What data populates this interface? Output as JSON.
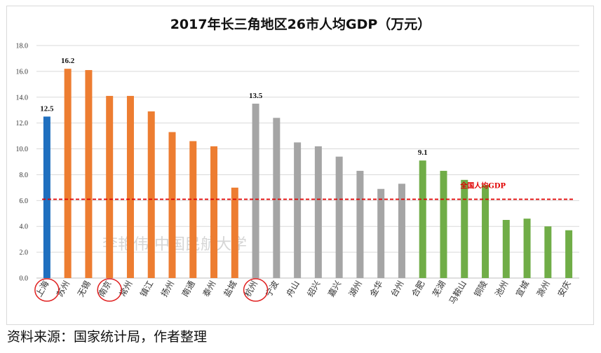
{
  "chart_data": {
    "type": "bar",
    "title": "2017年长三角地区26市人均GDP（万元）",
    "ylim": [
      0,
      18
    ],
    "yticks": [
      "0.0",
      "2.0",
      "4.0",
      "6.0",
      "8.0",
      "10.0",
      "12.0",
      "14.0",
      "16.0",
      "18.0"
    ],
    "grid": true,
    "categories": [
      "上海",
      "苏州",
      "无锡",
      "南京",
      "常州",
      "镇江",
      "扬州",
      "南通",
      "泰州",
      "盐城",
      "杭州",
      "宁波",
      "舟山",
      "绍兴",
      "嘉兴",
      "湖州",
      "金华",
      "台州",
      "合肥",
      "芜湖",
      "马鞍山",
      "铜陵",
      "池州",
      "宣城",
      "滁州",
      "安庆"
    ],
    "values": [
      12.5,
      16.2,
      16.1,
      14.1,
      14.1,
      12.9,
      11.3,
      10.6,
      10.2,
      7.0,
      13.5,
      12.4,
      10.5,
      10.2,
      9.4,
      8.3,
      6.9,
      7.3,
      9.1,
      8.3,
      7.6,
      7.2,
      4.5,
      4.6,
      4.0,
      3.7
    ],
    "groups": [
      "shanghai",
      "jiangsu",
      "jiangsu",
      "jiangsu",
      "jiangsu",
      "jiangsu",
      "jiangsu",
      "jiangsu",
      "jiangsu",
      "jiangsu",
      "zhejiang",
      "zhejiang",
      "zhejiang",
      "zhejiang",
      "zhejiang",
      "zhejiang",
      "zhejiang",
      "zhejiang",
      "anhui",
      "anhui",
      "anhui",
      "anhui",
      "anhui",
      "anhui",
      "anhui",
      "anhui"
    ],
    "group_colors": {
      "shanghai": "#1f6fbf",
      "jiangsu": "#ed7d31",
      "zhejiang": "#a5a5a5",
      "anhui": "#70ad47"
    },
    "data_labels": [
      {
        "index": 0,
        "text": "12.5"
      },
      {
        "index": 1,
        "text": "16.2"
      },
      {
        "index": 10,
        "text": "13.5"
      },
      {
        "index": 18,
        "text": "9.1"
      }
    ],
    "circled": [
      0,
      3,
      10
    ],
    "reference_line": {
      "value": 6.1,
      "label": "全国人均GDP",
      "color": "#e00000"
    },
    "watermark": "李艳伟-中国民航大学"
  },
  "source_note": "资料来源：国家统计局，作者整理"
}
